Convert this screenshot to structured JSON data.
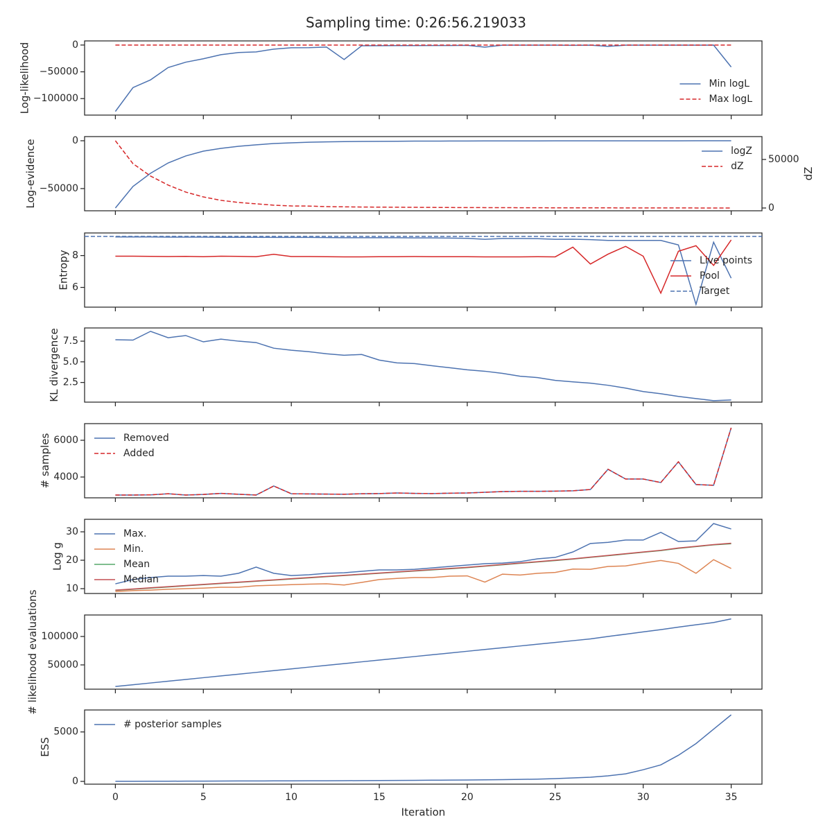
{
  "title": "Sampling time: 0:26:56.219033",
  "chart_data": [
    {
      "type": "line",
      "ylabel": "Log-likelihood",
      "ylim": [
        -130800,
        7700
      ],
      "yticks": [
        {
          "value": -100000,
          "label": "−100000"
        },
        {
          "value": -50000,
          "label": "−50000"
        },
        0
      ],
      "legend": "lower right",
      "x": [
        0,
        1,
        2,
        3,
        4,
        5,
        6,
        7,
        8,
        9,
        10,
        11,
        12,
        13,
        14,
        15,
        16,
        17,
        18,
        19,
        20,
        21,
        22,
        23,
        24,
        25,
        26,
        27,
        28,
        29,
        30,
        31,
        32,
        33,
        34,
        35
      ],
      "series": [
        {
          "name": "Min logL",
          "color": "#4c72b0",
          "values": [
            -124000,
            -79500,
            -65000,
            -42000,
            -32000,
            -25600,
            -18000,
            -14000,
            -12800,
            -7700,
            -5100,
            -5000,
            -3800,
            -27000,
            -1300,
            -1200,
            -1000,
            -1000,
            -900,
            -800,
            -500,
            -4000,
            -300,
            -300,
            -300,
            -300,
            -500,
            -300,
            -2500,
            -300,
            -300,
            -300,
            -300,
            -300,
            -100,
            -41000
          ]
        },
        {
          "name": "Max logL",
          "color": "#d62728",
          "dash": true,
          "values": [
            0,
            0,
            0,
            0,
            0,
            0,
            0,
            0,
            0,
            0,
            0,
            0,
            0,
            0,
            0,
            0,
            0,
            0,
            0,
            0,
            0,
            0,
            0,
            0,
            0,
            0,
            0,
            0,
            0,
            0,
            0,
            0,
            0,
            0,
            0,
            0
          ]
        }
      ]
    },
    {
      "type": "line",
      "ylabel": "Log-evidence",
      "y2label": "dZ",
      "ylim": [
        -73200,
        4350
      ],
      "yticks": [
        {
          "value": -50000,
          "label": "−50000"
        },
        0
      ],
      "y2lim": [
        -2860,
        73570
      ],
      "y2ticks": [
        0,
        50000
      ],
      "legend": "upper right",
      "x": [
        0,
        1,
        2,
        3,
        4,
        5,
        6,
        7,
        8,
        9,
        10,
        11,
        12,
        13,
        14,
        15,
        16,
        17,
        18,
        19,
        20,
        21,
        22,
        23,
        24,
        25,
        26,
        27,
        28,
        29,
        30,
        31,
        32,
        33,
        34,
        35
      ],
      "series": [
        {
          "name": "logZ",
          "color": "#4c72b0",
          "values": [
            -70300,
            -47800,
            -34000,
            -23200,
            -15900,
            -10900,
            -8000,
            -5800,
            -4300,
            -2900,
            -2200,
            -1500,
            -1200,
            -900,
            -700,
            -600,
            -500,
            -400,
            -350,
            -300,
            -250,
            -200,
            -180,
            -160,
            -140,
            -120,
            -110,
            -100,
            -90,
            -80,
            -70,
            -60,
            -50,
            -40,
            -30,
            -20
          ]
        },
        {
          "name": "dZ",
          "color": "#d62728",
          "dash": true,
          "axis": "y2",
          "values": [
            69300,
            45700,
            32900,
            23600,
            16400,
            11400,
            7900,
            5700,
            4300,
            2900,
            2100,
            2000,
            1400,
            1200,
            1000,
            900,
            800,
            700,
            600,
            500,
            450,
            400,
            350,
            300,
            250,
            200,
            180,
            160,
            140,
            120,
            100,
            80,
            60,
            40,
            20,
            10
          ]
        }
      ]
    },
    {
      "type": "line",
      "ylabel": "Entropy",
      "ylim": [
        4.76,
        9.42
      ],
      "yticks": [
        6,
        8
      ],
      "legend": "lower right",
      "x": [
        0,
        1,
        2,
        3,
        4,
        5,
        6,
        7,
        8,
        9,
        10,
        11,
        12,
        13,
        14,
        15,
        16,
        17,
        18,
        19,
        20,
        21,
        22,
        23,
        24,
        25,
        26,
        27,
        28,
        29,
        30,
        31,
        32,
        33,
        34,
        35
      ],
      "series": [
        {
          "name": "Live points",
          "color": "#4c72b0",
          "values": [
            9.17,
            9.17,
            9.17,
            9.16,
            9.16,
            9.16,
            9.15,
            9.15,
            9.15,
            9.14,
            9.14,
            9.14,
            9.13,
            9.12,
            9.12,
            9.12,
            9.12,
            9.11,
            9.11,
            9.1,
            9.08,
            9.02,
            9.07,
            9.07,
            9.06,
            9.02,
            9.03,
            9.0,
            8.95,
            8.95,
            8.95,
            8.95,
            8.67,
            4.93,
            8.84,
            6.58
          ]
        },
        {
          "name": "Pool",
          "color": "#d62728",
          "values": [
            7.96,
            7.96,
            7.95,
            7.94,
            7.95,
            7.93,
            7.96,
            7.95,
            7.93,
            8.08,
            7.94,
            7.94,
            7.93,
            7.92,
            7.92,
            7.93,
            7.93,
            7.94,
            7.93,
            7.93,
            7.93,
            7.92,
            7.92,
            7.92,
            7.93,
            7.92,
            8.53,
            7.47,
            8.09,
            8.58,
            7.96,
            5.64,
            8.27,
            8.62,
            7.38,
            8.98
          ]
        }
      ],
      "hlines": [
        {
          "name": "Target",
          "color": "#4c72b0",
          "dash": true,
          "value": 9.2
        }
      ]
    },
    {
      "type": "line",
      "ylabel": "KL divergence",
      "ylim": [
        0.12,
        9.1
      ],
      "yticks": [
        2.5,
        {
          "value": 5,
          "label": "5.0"
        },
        7.5
      ],
      "x": [
        0,
        1,
        2,
        3,
        4,
        5,
        6,
        7,
        8,
        9,
        10,
        11,
        12,
        13,
        14,
        15,
        16,
        17,
        18,
        19,
        20,
        21,
        22,
        23,
        24,
        25,
        26,
        27,
        28,
        29,
        30,
        31,
        32,
        33,
        34,
        35
      ],
      "series": [
        {
          "color": "#4c72b0",
          "values": [
            7.67,
            7.63,
            8.69,
            7.92,
            8.18,
            7.42,
            7.75,
            7.5,
            7.33,
            6.65,
            6.4,
            6.23,
            5.97,
            5.8,
            5.89,
            5.21,
            4.87,
            4.79,
            4.53,
            4.28,
            4.03,
            3.86,
            3.6,
            3.26,
            3.09,
            2.75,
            2.58,
            2.42,
            2.16,
            1.82,
            1.4,
            1.14,
            0.81,
            0.55,
            0.3,
            0.38
          ]
        }
      ]
    },
    {
      "type": "line",
      "ylabel": "# samples",
      "ylim": [
        2868,
        6906
      ],
      "yticks": [
        4000,
        6000
      ],
      "legend": "upper left",
      "x": [
        0,
        1,
        2,
        3,
        4,
        5,
        6,
        7,
        8,
        9,
        10,
        11,
        12,
        13,
        14,
        15,
        16,
        17,
        18,
        19,
        20,
        21,
        22,
        23,
        24,
        25,
        26,
        27,
        28,
        29,
        30,
        31,
        32,
        33,
        34,
        35
      ],
      "series": [
        {
          "name": "Removed",
          "color": "#4c72b0",
          "values": [
            3020,
            3020,
            3030,
            3090,
            3020,
            3050,
            3110,
            3060,
            3020,
            3510,
            3090,
            3080,
            3070,
            3060,
            3090,
            3100,
            3130,
            3110,
            3100,
            3120,
            3130,
            3170,
            3210,
            3220,
            3220,
            3230,
            3250,
            3320,
            4420,
            3890,
            3890,
            3700,
            4830,
            3590,
            3550,
            6680
          ]
        },
        {
          "name": "Added",
          "color": "#d62728",
          "dash": true,
          "values": [
            3020,
            3020,
            3030,
            3090,
            3020,
            3050,
            3110,
            3060,
            3020,
            3510,
            3090,
            3080,
            3070,
            3060,
            3090,
            3100,
            3130,
            3110,
            3100,
            3120,
            3130,
            3170,
            3210,
            3220,
            3220,
            3230,
            3250,
            3320,
            4420,
            3890,
            3890,
            3700,
            4830,
            3590,
            3550,
            6680
          ]
        }
      ]
    },
    {
      "type": "line",
      "ylabel": "Log g",
      "ylim": [
        8.3,
        34.4
      ],
      "yticks": [
        10,
        20,
        30
      ],
      "legend": "upper left",
      "x": [
        0,
        1,
        2,
        3,
        4,
        5,
        6,
        7,
        8,
        9,
        10,
        11,
        12,
        13,
        14,
        15,
        16,
        17,
        18,
        19,
        20,
        21,
        22,
        23,
        24,
        25,
        26,
        27,
        28,
        29,
        30,
        31,
        32,
        33,
        34,
        35
      ],
      "series": [
        {
          "name": "Max.",
          "color": "#4c72b0",
          "values": [
            11.7,
            13.2,
            13.9,
            14.4,
            14.4,
            14.6,
            14.4,
            15.4,
            17.6,
            15.4,
            14.6,
            14.9,
            15.4,
            15.6,
            16.1,
            16.6,
            16.6,
            16.8,
            17.3,
            17.8,
            18.3,
            18.8,
            19.0,
            19.5,
            20.5,
            21.0,
            22.9,
            25.9,
            26.3,
            27.1,
            27.1,
            29.8,
            26.6,
            26.8,
            32.9,
            31.0
          ]
        },
        {
          "name": "Min.",
          "color": "#dd8452",
          "values": [
            9.0,
            9.3,
            9.5,
            9.8,
            10.0,
            10.2,
            10.5,
            10.5,
            11.0,
            11.2,
            11.4,
            11.6,
            11.7,
            11.3,
            12.2,
            13.2,
            13.6,
            13.9,
            13.9,
            14.4,
            14.5,
            12.3,
            15.1,
            14.8,
            15.4,
            15.7,
            16.9,
            16.8,
            17.8,
            18.0,
            19.0,
            19.9,
            18.9,
            15.4,
            20.2,
            17.1
          ]
        },
        {
          "name": "Mean",
          "color": "#55a868",
          "values": [
            9.4,
            9.8,
            10.2,
            10.6,
            11.0,
            11.4,
            11.8,
            12.2,
            12.6,
            13.0,
            13.4,
            13.8,
            14.2,
            14.6,
            15.0,
            15.4,
            15.8,
            16.2,
            16.6,
            17.0,
            17.4,
            17.9,
            18.4,
            18.9,
            19.4,
            19.9,
            20.4,
            21.0,
            21.6,
            22.2,
            22.8,
            23.4,
            24.2,
            24.8,
            25.4,
            25.8
          ]
        },
        {
          "name": "Median",
          "color": "#c44e52",
          "values": [
            9.5,
            9.9,
            10.3,
            10.7,
            11.1,
            11.5,
            11.9,
            12.3,
            12.7,
            13.1,
            13.5,
            13.9,
            14.3,
            14.7,
            15.1,
            15.5,
            15.9,
            16.3,
            16.7,
            17.1,
            17.5,
            18.0,
            18.5,
            19.0,
            19.5,
            20.0,
            20.5,
            21.1,
            21.7,
            22.3,
            22.9,
            23.5,
            24.3,
            24.9,
            25.5,
            26.0
          ]
        }
      ]
    },
    {
      "type": "line",
      "ylabel": "# likelihood evaluations",
      "ylim": [
        7300,
        137800
      ],
      "yticks": [
        50000,
        100000
      ],
      "x": [
        0,
        1,
        2,
        3,
        4,
        5,
        6,
        7,
        8,
        9,
        10,
        11,
        12,
        13,
        14,
        15,
        16,
        17,
        18,
        19,
        20,
        21,
        22,
        23,
        24,
        25,
        26,
        27,
        28,
        29,
        30,
        31,
        32,
        33,
        34,
        35
      ],
      "series": [
        {
          "color": "#4c72b0",
          "values": [
            12000,
            15100,
            18200,
            21300,
            24400,
            27500,
            30600,
            33700,
            36800,
            39900,
            43000,
            46100,
            49200,
            52300,
            55400,
            58500,
            61600,
            64700,
            67800,
            70900,
            74000,
            77100,
            80200,
            83300,
            86400,
            89500,
            92600,
            95700,
            100000,
            104000,
            108000,
            112000,
            116500,
            120500,
            124500,
            131000
          ]
        }
      ]
    },
    {
      "type": "line",
      "ylabel": "ESS",
      "xlabel": "Iteration",
      "ylim": [
        -280,
        7220
      ],
      "yticks": [
        0,
        5000
      ],
      "legend": "upper left",
      "xlim": [
        -1.75,
        36.75
      ],
      "xticks": [
        0,
        5,
        10,
        15,
        20,
        25,
        30,
        35
      ],
      "x": [
        0,
        1,
        2,
        3,
        4,
        5,
        6,
        7,
        8,
        9,
        10,
        11,
        12,
        13,
        14,
        15,
        16,
        17,
        18,
        19,
        20,
        21,
        22,
        23,
        24,
        25,
        26,
        27,
        28,
        29,
        30,
        31,
        32,
        33,
        34,
        35
      ],
      "series": [
        {
          "name": "# posterior samples",
          "color": "#4c72b0",
          "values": [
            5,
            10,
            15,
            20,
            25,
            30,
            35,
            40,
            45,
            50,
            55,
            60,
            65,
            70,
            80,
            90,
            100,
            110,
            120,
            130,
            140,
            160,
            180,
            200,
            230,
            280,
            350,
            420,
            560,
            760,
            1180,
            1670,
            2640,
            3820,
            5280,
            6730
          ]
        }
      ]
    }
  ]
}
